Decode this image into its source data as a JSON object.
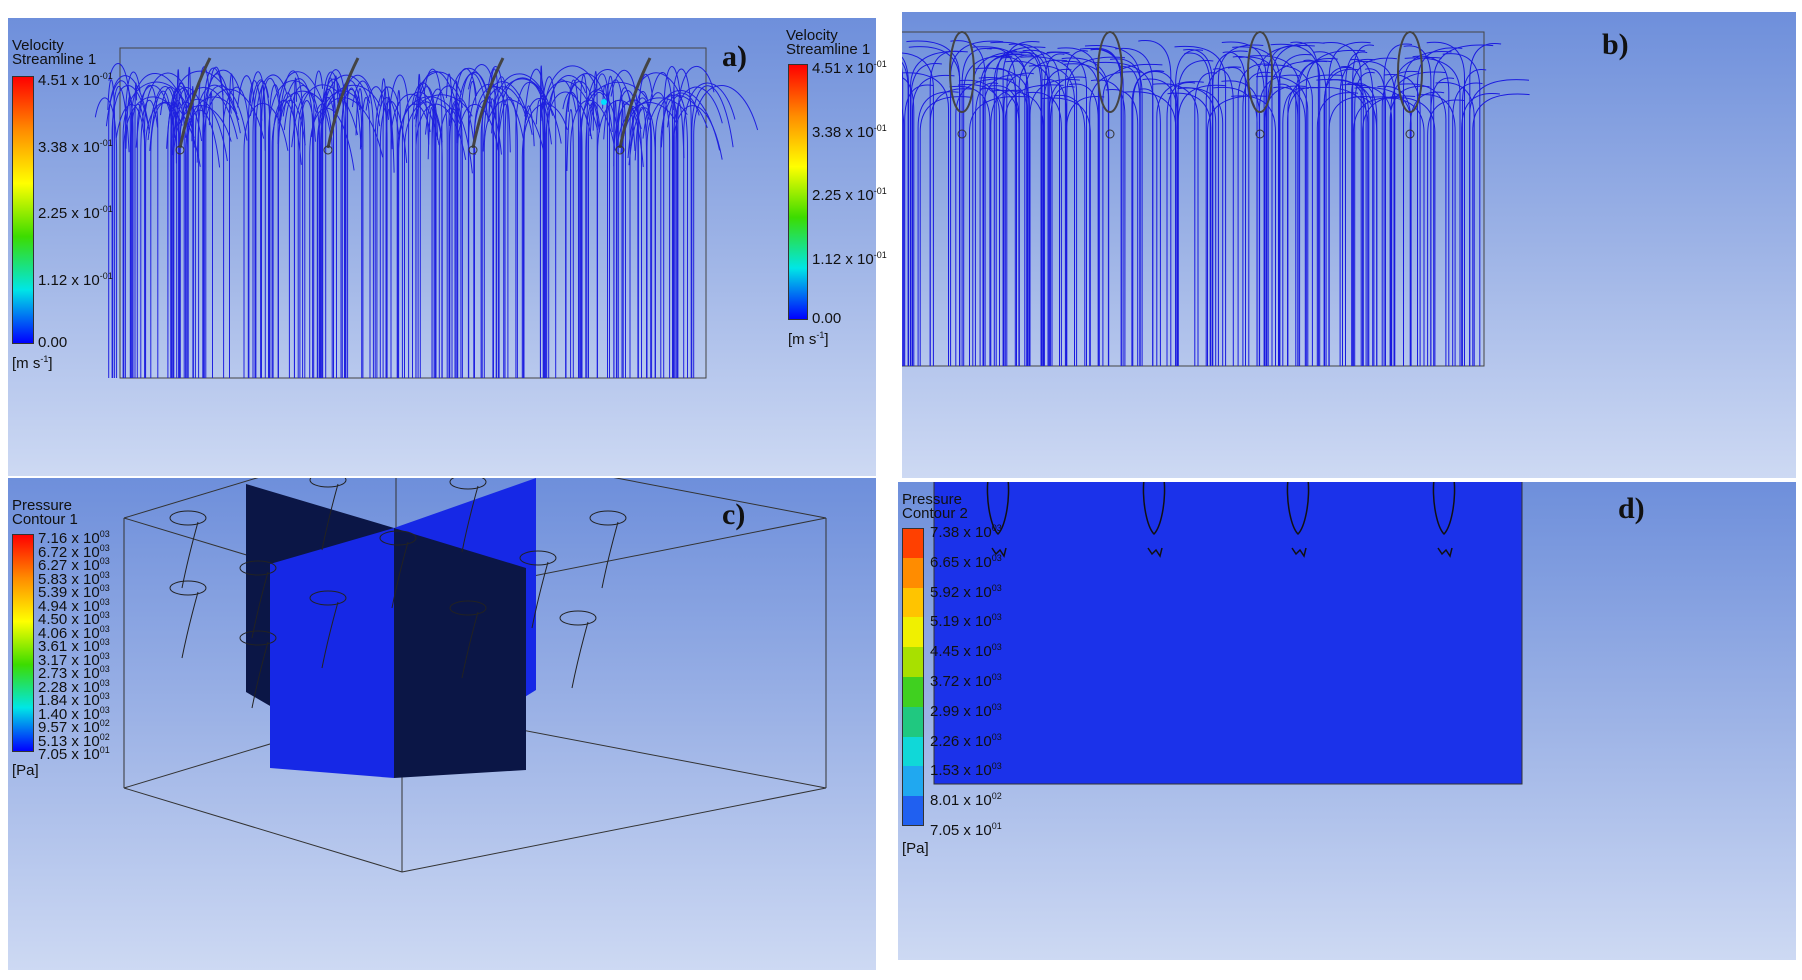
{
  "panels": {
    "a": {
      "corner_label": "a)",
      "title": "Velocity",
      "subtitle": "Streamline 1",
      "ticks": [
        "4.51 x 10",
        "3.38 x 10",
        "2.25 x 10",
        "1.12 x 10",
        "0.00"
      ],
      "tick_exponent": "-01",
      "unit": "[m s",
      "unit_exp": "-1",
      "unit_close": "]"
    },
    "b": {
      "corner_label": "b)",
      "title": "Velocity",
      "subtitle": "Streamline 1",
      "ticks": [
        "4.51 x 10",
        "3.38 x 10",
        "2.25 x 10",
        "1.12 x 10",
        "0.00"
      ],
      "tick_exponent": "-01",
      "unit": "[m s",
      "unit_exp": "-1",
      "unit_close": "]"
    },
    "c": {
      "corner_label": "c)",
      "title": "Pressure",
      "subtitle": "Contour 1",
      "ticks": [
        "7.16 x 10",
        "6.72 x 10",
        "6.27 x 10",
        "5.83 x 10",
        "5.39 x 10",
        "4.94 x 10",
        "4.50 x 10",
        "4.06 x 10",
        "3.61 x 10",
        "3.17 x 10",
        "2.73 x 10",
        "2.28 x 10",
        "1.84 x 10",
        "1.40 x 10",
        "9.57 x 10",
        "5.13 x 10",
        "7.05 x 10"
      ],
      "tick_exponents": [
        "03",
        "03",
        "03",
        "03",
        "03",
        "03",
        "03",
        "03",
        "03",
        "03",
        "03",
        "03",
        "03",
        "03",
        "02",
        "02",
        "01"
      ],
      "unit": "[Pa]"
    },
    "d": {
      "corner_label": "d)",
      "title": "Pressure",
      "subtitle": "Contour 2",
      "ticks": [
        "7.38 x 10",
        "6.65 x 10",
        "5.92 x 10",
        "5.19 x 10",
        "4.45 x 10",
        "3.72 x 10",
        "2.99 x 10",
        "2.26 x 10",
        "1.53 x 10",
        "8.01 x 10",
        "7.05 x 10"
      ],
      "tick_exponents": [
        "03",
        "03",
        "03",
        "03",
        "03",
        "03",
        "03",
        "03",
        "03",
        "02",
        "01"
      ],
      "unit": "[Pa]"
    }
  },
  "colors": {
    "streamline": "#1a1adf",
    "plane_dark": "#0b1646",
    "plane_blue": "#1628e6",
    "contour_fill": "#1b32ea",
    "bucket_outline": "#222222",
    "outline_box": "#333333"
  }
}
